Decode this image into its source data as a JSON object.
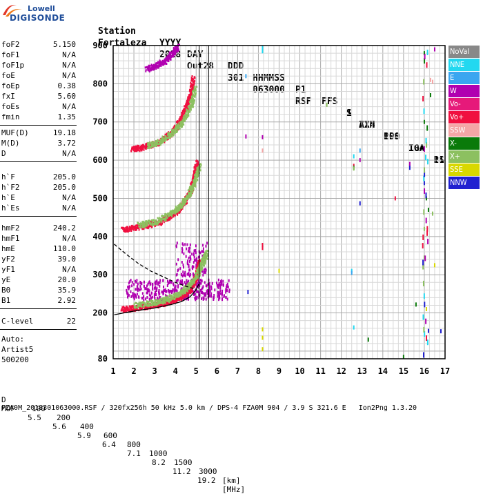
{
  "logo": {
    "line1": "Lowell",
    "line2": "DIGISONDE"
  },
  "header": {
    "row1": [
      "Station",
      "YYYY",
      "DAY",
      "DDD",
      "HHMMSS",
      "P1",
      "FFS",
      "S",
      "AXN",
      "PPS",
      "IGA",
      "PS"
    ],
    "row2": [
      "Fortaleza",
      "2018",
      "Out28",
      "301",
      "063000",
      "RSF",
      "1",
      "714",
      "100",
      "10+",
      "11"
    ]
  },
  "params_group1": [
    {
      "label": "foF2",
      "value": "5.150"
    },
    {
      "label": "foF1",
      "value": "N/A"
    },
    {
      "label": "foF1p",
      "value": "N/A"
    },
    {
      "label": "foE",
      "value": "N/A"
    },
    {
      "label": "foEp",
      "value": "0.38"
    },
    {
      "label": "fxI",
      "value": "5.60"
    },
    {
      "label": "foEs",
      "value": "N/A"
    },
    {
      "label": "fmin",
      "value": "1.35"
    }
  ],
  "params_group2": [
    {
      "label": "MUF(D)",
      "value": "19.18"
    },
    {
      "label": "M(D)",
      "value": "3.72"
    },
    {
      "label": "D",
      "value": "N/A"
    }
  ],
  "params_group3": [
    {
      "label": "h`F",
      "value": "205.0"
    },
    {
      "label": "h`F2",
      "value": "205.0"
    },
    {
      "label": "h`E",
      "value": "N/A"
    },
    {
      "label": "h`Es",
      "value": "N/A"
    }
  ],
  "params_group4": [
    {
      "label": "hmF2",
      "value": "240.2"
    },
    {
      "label": "hmF1",
      "value": "N/A"
    },
    {
      "label": "hmE",
      "value": "110.0"
    },
    {
      "label": "yF2",
      "value": "39.0"
    },
    {
      "label": "yF1",
      "value": "N/A"
    },
    {
      "label": "yE",
      "value": "20.0"
    },
    {
      "label": "B0",
      "value": "35.9"
    },
    {
      "label": "B1",
      "value": "2.92"
    }
  ],
  "params_group5": [
    {
      "label": "C-level",
      "value": "22"
    }
  ],
  "autoscale": {
    "line1": "Auto:",
    "line2": "Artist5",
    "line3": "500200"
  },
  "legend": [
    {
      "label": "NoVal",
      "color": "#888888"
    },
    {
      "label": "NNE",
      "color": "#22d8f0"
    },
    {
      "label": "E",
      "color": "#3aa6f0"
    },
    {
      "label": "W",
      "color": "#b000b0"
    },
    {
      "label": "Vo-",
      "color": "#e6197a"
    },
    {
      "label": "Vo+",
      "color": "#f01040"
    },
    {
      "label": "SSW",
      "color": "#f4a6a6"
    },
    {
      "label": "X-",
      "color": "#0a7a0a"
    },
    {
      "label": "X+",
      "color": "#8cc060"
    },
    {
      "label": "SSE",
      "color": "#d8d800"
    },
    {
      "label": "NNW",
      "color": "#2020d0"
    }
  ],
  "footer": {
    "d_label": "D",
    "d_values": [
      "100",
      "200",
      "400",
      "600",
      "800",
      "1000",
      "1500",
      "3000",
      "[km]"
    ],
    "muf_label": "MUF",
    "muf_values": [
      "5.5",
      "5.6",
      "5.9",
      "6.4",
      "7.1",
      "8.2",
      "11.2",
      "19.2",
      "[MHz]"
    ],
    "info": "FZA0M_2018301063000.RSF / 320fx256h 50 kHz 5.0 km / DPS-4 FZA0M 904 / 3.9 S 321.6 E   Ion2Png 1.3.20"
  },
  "chart_data": {
    "type": "scatter",
    "xlim": [
      1,
      17
    ],
    "ylim": [
      80,
      900
    ],
    "xticks": [
      "1",
      "2",
      "3",
      "4",
      "5",
      "6",
      "7",
      "8",
      "9",
      "10",
      "11",
      "12",
      "13",
      "14",
      "15",
      "16",
      "17"
    ],
    "yticks": [
      "80",
      "200",
      "300",
      "400",
      "500",
      "600",
      "700",
      "800",
      "900"
    ],
    "grid": true,
    "vertical_markers": [
      5.15,
      5.6
    ],
    "traces": [
      {
        "name": "O-trace 1st hop",
        "color": "#f01040",
        "points": [
          [
            1.4,
            212
          ],
          [
            2.0,
            215
          ],
          [
            2.6,
            220
          ],
          [
            3.2,
            225
          ],
          [
            3.7,
            232
          ],
          [
            4.1,
            240
          ],
          [
            4.4,
            250
          ],
          [
            4.7,
            265
          ],
          [
            4.9,
            285
          ],
          [
            5.05,
            310
          ],
          [
            5.15,
            340
          ]
        ]
      },
      {
        "name": "O-trace 2nd hop",
        "color": "#f01040",
        "points": [
          [
            1.4,
            420
          ],
          [
            2.0,
            425
          ],
          [
            2.6,
            432
          ],
          [
            3.2,
            440
          ],
          [
            3.7,
            455
          ],
          [
            4.1,
            470
          ],
          [
            4.4,
            490
          ],
          [
            4.7,
            520
          ],
          [
            4.9,
            560
          ],
          [
            5.0,
            600
          ]
        ]
      },
      {
        "name": "O-trace 3rd hop",
        "color": "#f01040",
        "points": [
          [
            1.9,
            630
          ],
          [
            2.4,
            636
          ],
          [
            3.0,
            645
          ],
          [
            3.5,
            660
          ],
          [
            3.9,
            680
          ],
          [
            4.2,
            705
          ],
          [
            4.5,
            740
          ],
          [
            4.7,
            775
          ],
          [
            4.85,
            820
          ]
        ]
      },
      {
        "name": "O-trace 4th hop",
        "color": "#b000b0",
        "points": [
          [
            2.6,
            840
          ],
          [
            3.0,
            848
          ],
          [
            3.5,
            862
          ],
          [
            3.9,
            885
          ],
          [
            4.1,
            900
          ]
        ]
      },
      {
        "name": "X-trace 1st hop",
        "color": "#8cc060",
        "points": [
          [
            2.0,
            222
          ],
          [
            2.8,
            228
          ],
          [
            3.5,
            236
          ],
          [
            4.1,
            250
          ],
          [
            4.6,
            270
          ],
          [
            5.0,
            300
          ],
          [
            5.3,
            335
          ],
          [
            5.5,
            360
          ]
        ]
      },
      {
        "name": "X-trace 2nd hop",
        "color": "#8cc060",
        "points": [
          [
            2.2,
            432
          ],
          [
            3.0,
            440
          ],
          [
            3.7,
            460
          ],
          [
            4.2,
            480
          ],
          [
            4.6,
            510
          ],
          [
            4.9,
            545
          ],
          [
            5.15,
            590
          ]
        ]
      },
      {
        "name": "X-trace 3rd hop",
        "color": "#8cc060",
        "points": [
          [
            2.6,
            640
          ],
          [
            3.2,
            650
          ],
          [
            3.8,
            672
          ],
          [
            4.3,
            700
          ],
          [
            4.7,
            740
          ],
          [
            4.95,
            790
          ]
        ]
      }
    ],
    "spread": [
      {
        "name": "W cluster",
        "color": "#b000b0",
        "x_range": [
          1.6,
          6.6
        ],
        "y_range": [
          238,
          290
        ]
      },
      {
        "name": "W tower",
        "color": "#b000b0",
        "x_range": [
          4.0,
          5.5
        ],
        "y_range": [
          300,
          390
        ]
      }
    ],
    "profile_solid": [
      [
        1.05,
        195
      ],
      [
        1.5,
        200
      ],
      [
        2.0,
        205
      ],
      [
        3.0,
        213
      ],
      [
        3.8,
        222
      ],
      [
        4.3,
        230
      ],
      [
        4.7,
        242
      ],
      [
        5.0,
        260
      ],
      [
        5.12,
        275
      ]
    ],
    "profile_dashed": [
      [
        1.05,
        380
      ],
      [
        1.6,
        355
      ],
      [
        2.2,
        330
      ],
      [
        2.8,
        310
      ],
      [
        3.4,
        295
      ],
      [
        4.0,
        280
      ],
      [
        4.5,
        270
      ],
      [
        5.0,
        262
      ]
    ],
    "scattered_points": [
      {
        "color": "#22d8f0",
        "points": [
          [
            8.2,
            895
          ],
          [
            8.2,
            885
          ],
          [
            12.6,
            610
          ],
          [
            12.5,
            310
          ],
          [
            12.6,
            162
          ]
        ]
      },
      {
        "color": "#3aa6f0",
        "points": [
          [
            7.4,
            820
          ],
          [
            12.9,
            625
          ],
          [
            12.5,
            305
          ]
        ]
      },
      {
        "color": "#b000b0",
        "points": [
          [
            7.4,
            662
          ],
          [
            8.2,
            660
          ],
          [
            12.9,
            600
          ],
          [
            15.3,
            590
          ],
          [
            16.5,
            890
          ]
        ]
      },
      {
        "color": "#f01040",
        "points": [
          [
            8.2,
            378
          ],
          [
            8.2,
            370
          ],
          [
            12.6,
            585
          ],
          [
            14.6,
            500
          ]
        ]
      },
      {
        "color": "#f4a6a6",
        "points": [
          [
            8.2,
            625
          ],
          [
            16.3,
            810
          ],
          [
            16.4,
            805
          ]
        ]
      },
      {
        "color": "#0a7a0a",
        "points": [
          [
            12.6,
            580
          ],
          [
            13.3,
            130
          ],
          [
            15.6,
            222
          ],
          [
            16.0,
            880
          ],
          [
            16.0,
            700
          ],
          [
            16.1,
            500
          ],
          [
            16.2,
            470
          ],
          [
            16.3,
            770
          ],
          [
            15.0,
            85
          ]
        ]
      },
      {
        "color": "#8cc060",
        "points": [
          [
            11.3,
            745
          ],
          [
            12.6,
            578
          ],
          [
            16.0,
            420
          ],
          [
            16.0,
            345
          ],
          [
            16.4,
            460
          ]
        ]
      },
      {
        "color": "#d8d800",
        "points": [
          [
            8.2,
            157
          ],
          [
            8.2,
            135
          ],
          [
            9.0,
            310
          ],
          [
            16.1,
            210
          ],
          [
            16.5,
            325
          ],
          [
            8.2,
            105
          ]
        ]
      },
      {
        "color": "#2020d0",
        "points": [
          [
            12.9,
            487
          ],
          [
            15.3,
            580
          ],
          [
            16.0,
            540
          ],
          [
            16.2,
            153
          ],
          [
            16.8,
            152
          ],
          [
            7.5,
            255
          ]
        ]
      }
    ],
    "column_points": {
      "x": 16.05,
      "color": "#0a7a0a",
      "y_from": 90,
      "y_to": 900
    }
  }
}
